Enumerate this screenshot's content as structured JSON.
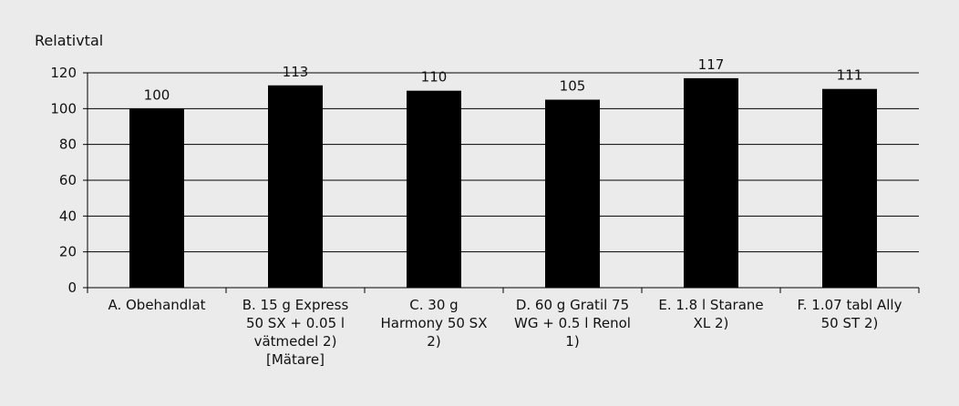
{
  "chart_data": {
    "type": "bar",
    "ylabel": "Relativtal",
    "xlabel": "",
    "ylim": [
      0,
      120
    ],
    "yticks": [
      0,
      20,
      40,
      60,
      80,
      100,
      120
    ],
    "grid": true,
    "legend": "none",
    "bar_color": "#000000",
    "categories": [
      [
        "A. Obehandlat"
      ],
      [
        "B.  15  g Express",
        "50 SX + 0.05 l",
        "vätmedel 2)",
        "[Mätare]"
      ],
      [
        "C.  30  g",
        "Harmony 50 SX",
        "2)"
      ],
      [
        "D.  60  g Gratil 75",
        "WG + 0.5 l Renol",
        "1)"
      ],
      [
        "E. 1.8  l Starane",
        "XL 2)"
      ],
      [
        "F. 1.07 tabl Ally",
        "50 ST 2)"
      ]
    ],
    "values": [
      100,
      113,
      110,
      105,
      117,
      111
    ],
    "data_labels": [
      "100",
      "113",
      "110",
      "105",
      "117",
      "111"
    ]
  }
}
